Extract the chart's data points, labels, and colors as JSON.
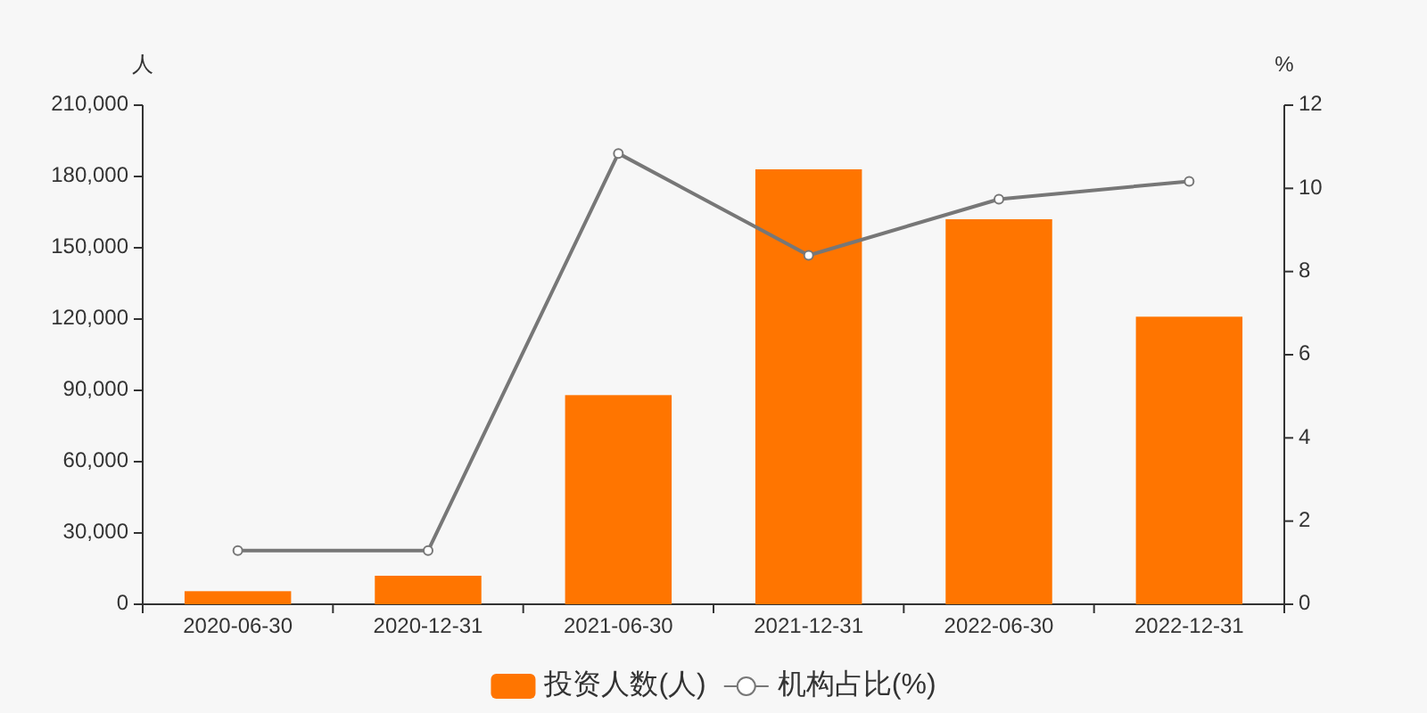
{
  "chart_data": {
    "type": "bar",
    "ylabel": "人",
    "y2label": "%",
    "categories": [
      "2020-06-30",
      "2020-12-31",
      "2021-06-30",
      "2021-12-31",
      "2022-06-30",
      "2022-12-31"
    ],
    "series": [
      {
        "name": "投资人数(人)",
        "color": "#ff7500",
        "values": [
          5500,
          12000,
          88000,
          183000,
          162000,
          121000
        ]
      },
      {
        "name": "机构占比(%)",
        "type": "line",
        "axis": "y2",
        "color": "#777777",
        "marker": "circle",
        "values": [
          1.29,
          1.29,
          10.84,
          8.39,
          9.74,
          10.17
        ]
      }
    ],
    "ylim": [
      0,
      210000
    ],
    "yticks": [
      {
        "value": 0,
        "label": "0"
      },
      {
        "value": 30000,
        "label": "30,000"
      },
      {
        "value": 60000,
        "label": "60,000"
      },
      {
        "value": 90000,
        "label": "90,000"
      },
      {
        "value": 120000,
        "label": "120,000"
      },
      {
        "value": 150000,
        "label": "150,000"
      },
      {
        "value": 180000,
        "label": "180,000"
      },
      {
        "value": 210000,
        "label": "210,000"
      }
    ],
    "y2lim": [
      0,
      12
    ],
    "y2ticks": [
      0,
      2,
      4,
      6,
      8,
      10,
      12
    ],
    "grid": false,
    "legend": "bottom"
  }
}
